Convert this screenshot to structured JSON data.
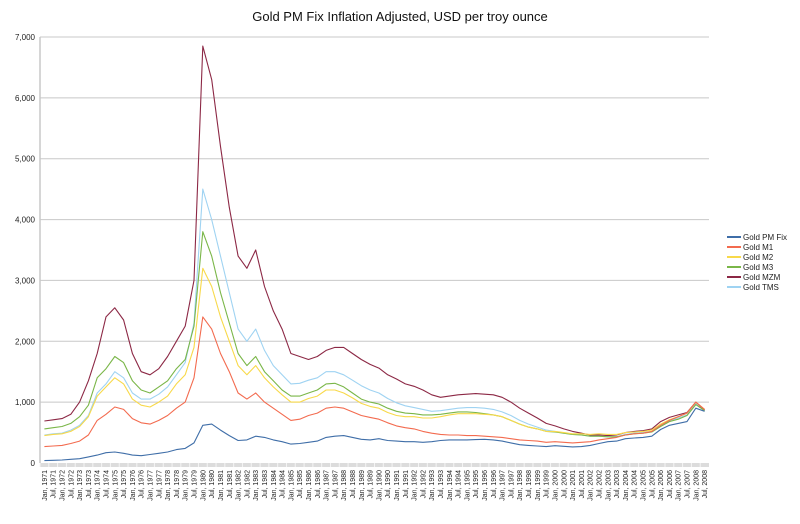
{
  "chart_data": {
    "type": "line",
    "title": "Gold PM Fix Inflation Adjusted, USD per troy ounce",
    "xlabel": "",
    "ylabel": "",
    "ylim": [
      0,
      7000
    ],
    "yticks": [
      "0",
      "1,000",
      "2,000",
      "3,000",
      "4,000",
      "5,000",
      "6,000",
      "7,000"
    ],
    "grid": true,
    "legend_position": "right",
    "categories": [
      "Jan, 1971",
      "Jul, 1971",
      "Jan, 1972",
      "Jul, 1972",
      "Jan, 1973",
      "Jul, 1973",
      "Jan, 1974",
      "Jul, 1974",
      "Jan, 1975",
      "Jul, 1975",
      "Jan, 1976",
      "Jul, 1976",
      "Jan, 1977",
      "Jul, 1977",
      "Jan, 1978",
      "Jul, 1978",
      "Jan, 1979",
      "Jul, 1979",
      "Jan, 1980",
      "Jul, 1980",
      "Jan, 1981",
      "Jul, 1981",
      "Jan, 1982",
      "Jul, 1982",
      "Jan, 1983",
      "Jul, 1983",
      "Jan, 1984",
      "Jul, 1984",
      "Jan, 1985",
      "Jul, 1985",
      "Jan, 1986",
      "Jul, 1986",
      "Jan, 1987",
      "Jul, 1987",
      "Jan, 1988",
      "Jul, 1988",
      "Jan, 1989",
      "Jul, 1989",
      "Jan, 1990",
      "Jul, 1990",
      "Jan, 1991",
      "Jul, 1991",
      "Jan, 1992",
      "Jul, 1992",
      "Jan, 1993",
      "Jul, 1993",
      "Jan, 1994",
      "Jul, 1994",
      "Jan, 1995",
      "Jul, 1995",
      "Jan, 1996",
      "Jul, 1996",
      "Jan, 1997",
      "Jul, 1997",
      "Jan, 1998",
      "Jul, 1998",
      "Jan, 1999",
      "Jul, 1999",
      "Jan, 2000",
      "Jul, 2000",
      "Jan, 2001",
      "Jul, 2001",
      "Jan, 2002",
      "Jul, 2002",
      "Jan, 2003",
      "Jul, 2003",
      "Jan, 2004",
      "Jul, 2004",
      "Jan, 2005",
      "Jul, 2005",
      "Jan, 2006",
      "Jul, 2006",
      "Jan, 2007",
      "Jul, 2007",
      "Jan, 2008",
      "Jul, 2008"
    ],
    "series": [
      {
        "name": "Gold PM Fix",
        "color": "#3f6ea8",
        "values": [
          40,
          45,
          50,
          60,
          70,
          100,
          130,
          170,
          180,
          160,
          130,
          120,
          140,
          160,
          180,
          220,
          240,
          330,
          620,
          640,
          540,
          450,
          370,
          380,
          440,
          420,
          380,
          350,
          310,
          320,
          340,
          360,
          420,
          440,
          450,
          420,
          390,
          380,
          400,
          370,
          360,
          350,
          350,
          340,
          350,
          370,
          380,
          380,
          380,
          385,
          390,
          380,
          360,
          330,
          300,
          290,
          280,
          270,
          285,
          275,
          265,
          270,
          290,
          320,
          350,
          360,
          400,
          410,
          420,
          440,
          550,
          620,
          650,
          680,
          900,
          850
        ]
      },
      {
        "name": "Gold M1",
        "color": "#f36b4f",
        "values": [
          270,
          280,
          290,
          320,
          360,
          460,
          700,
          800,
          920,
          880,
          730,
          660,
          640,
          700,
          780,
          900,
          1000,
          1400,
          2400,
          2200,
          1800,
          1500,
          1150,
          1050,
          1150,
          1000,
          900,
          800,
          700,
          720,
          780,
          820,
          900,
          920,
          900,
          840,
          780,
          750,
          720,
          660,
          610,
          580,
          560,
          520,
          490,
          470,
          460,
          460,
          450,
          450,
          440,
          430,
          420,
          400,
          380,
          370,
          360,
          340,
          350,
          340,
          330,
          340,
          350,
          380,
          400,
          420,
          460,
          480,
          490,
          520,
          620,
          700,
          760,
          820,
          1000,
          880
        ]
      },
      {
        "name": "Gold M2",
        "color": "#f8d94a",
        "values": [
          450,
          470,
          480,
          520,
          600,
          760,
          1100,
          1250,
          1400,
          1300,
          1050,
          950,
          920,
          1000,
          1100,
          1300,
          1450,
          1900,
          3200,
          2900,
          2400,
          2000,
          1600,
          1450,
          1600,
          1400,
          1250,
          1120,
          1000,
          1000,
          1060,
          1100,
          1200,
          1200,
          1150,
          1070,
          980,
          930,
          900,
          830,
          780,
          760,
          760,
          740,
          740,
          760,
          790,
          810,
          810,
          810,
          800,
          790,
          760,
          700,
          640,
          590,
          560,
          520,
          520,
          500,
          480,
          480,
          470,
          480,
          470,
          470,
          500,
          510,
          520,
          540,
          640,
          710,
          760,
          820,
          1000,
          880
        ]
      },
      {
        "name": "Gold M3",
        "color": "#7ab648",
        "values": [
          560,
          580,
          600,
          650,
          760,
          950,
          1400,
          1550,
          1750,
          1650,
          1350,
          1200,
          1150,
          1250,
          1350,
          1550,
          1700,
          2250,
          3800,
          3400,
          2800,
          2300,
          1800,
          1600,
          1750,
          1500,
          1350,
          1200,
          1100,
          1100,
          1150,
          1200,
          1300,
          1310,
          1250,
          1150,
          1050,
          1000,
          970,
          900,
          850,
          820,
          810,
          790,
          790,
          800,
          820,
          840,
          840,
          830,
          810,
          790,
          760,
          700,
          640,
          590,
          560,
          520,
          510,
          490,
          470,
          460,
          440,
          440,
          430,
          430,
          460,
          480,
          490,
          510,
          600,
          680,
          720,
          780,
          960,
          860
        ]
      },
      {
        "name": "Gold MZM",
        "color": "#8c2845",
        "values": [
          690,
          710,
          730,
          800,
          1000,
          1350,
          1800,
          2400,
          2550,
          2350,
          1800,
          1500,
          1450,
          1550,
          1750,
          2000,
          2250,
          3000,
          6850,
          6300,
          5200,
          4200,
          3400,
          3200,
          3500,
          2900,
          2500,
          2200,
          1800,
          1750,
          1700,
          1750,
          1850,
          1900,
          1900,
          1800,
          1700,
          1620,
          1560,
          1450,
          1380,
          1300,
          1260,
          1200,
          1120,
          1080,
          1100,
          1120,
          1130,
          1140,
          1130,
          1120,
          1080,
          1000,
          900,
          820,
          740,
          650,
          610,
          560,
          520,
          490,
          460,
          460,
          450,
          460,
          500,
          520,
          530,
          560,
          680,
          750,
          790,
          830,
          1000,
          870
        ]
      },
      {
        "name": "Gold TMS",
        "color": "#9fd3f2",
        "values": [
          460,
          480,
          490,
          540,
          620,
          780,
          1150,
          1300,
          1500,
          1400,
          1150,
          1050,
          1050,
          1130,
          1250,
          1450,
          1650,
          2300,
          4500,
          4000,
          3400,
          2800,
          2200,
          2000,
          2200,
          1850,
          1600,
          1450,
          1300,
          1310,
          1360,
          1400,
          1500,
          1500,
          1450,
          1360,
          1270,
          1200,
          1150,
          1060,
          990,
          940,
          910,
          880,
          850,
          860,
          880,
          900,
          910,
          910,
          900,
          880,
          840,
          780,
          700,
          640,
          590,
          540,
          520,
          490,
          470,
          460,
          440,
          440,
          430,
          430,
          470,
          490,
          500,
          520,
          620,
          690,
          740,
          790,
          970,
          860
        ]
      }
    ]
  }
}
